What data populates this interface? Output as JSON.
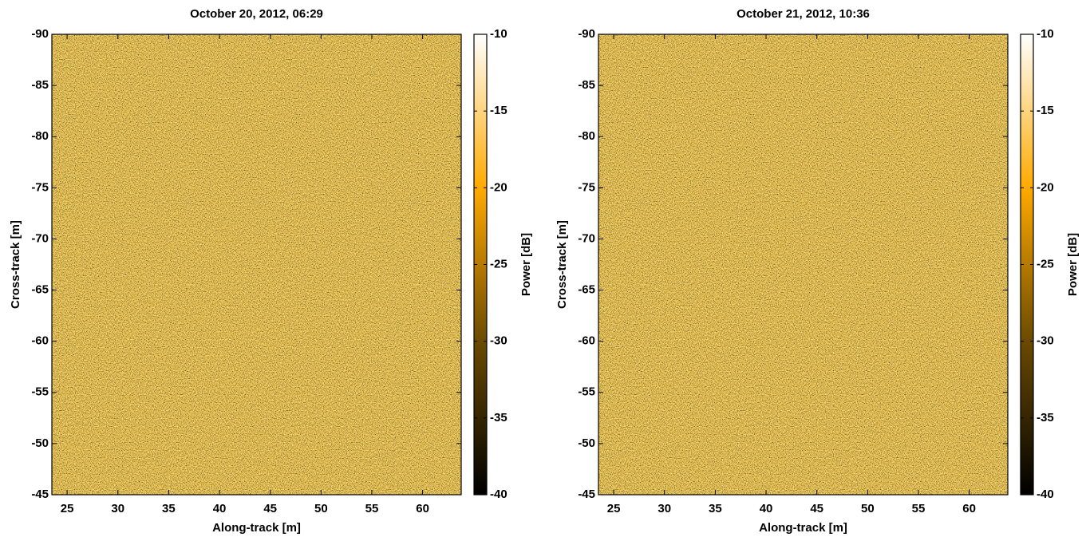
{
  "chart_data": [
    {
      "type": "image",
      "title": "October 20, 2012, 06:29",
      "x_label": "Along-track [m]",
      "y_label": "Cross-track [m]",
      "xlim": [
        23.5,
        63.8
      ],
      "xticks": [
        25,
        30,
        35,
        40,
        45,
        50,
        55,
        60
      ],
      "ylim": [
        -90,
        -45
      ],
      "yticks": [
        -90,
        -85,
        -80,
        -75,
        -70,
        -65,
        -60,
        -55,
        -50,
        -45
      ],
      "y_inverted": true,
      "colorbar_label": "Power [dB]",
      "clim": [
        -40,
        -10
      ],
      "cticks": [
        -40,
        -35,
        -30,
        -25,
        -20,
        -15,
        -10
      ],
      "colormap": [
        "#000000",
        "#6b4a00",
        "#ffaa00",
        "#ffffff"
      ]
    },
    {
      "type": "image",
      "title": "October 21, 2012, 10:36",
      "x_label": "Along-track [m]",
      "y_label": "Cross-track [m]",
      "xlim": [
        23.5,
        63.8
      ],
      "xticks": [
        25,
        30,
        35,
        40,
        45,
        50,
        55,
        60
      ],
      "ylim": [
        -90,
        -45
      ],
      "yticks": [
        -90,
        -85,
        -80,
        -75,
        -70,
        -65,
        -60,
        -55,
        -50,
        -45
      ],
      "y_inverted": true,
      "colorbar_label": "Power [dB]",
      "clim": [
        -40,
        -10
      ],
      "cticks": [
        -40,
        -35,
        -30,
        -25,
        -20,
        -15,
        -10
      ],
      "colormap": [
        "#000000",
        "#6b4a00",
        "#ffaa00",
        "#ffffff"
      ]
    }
  ]
}
